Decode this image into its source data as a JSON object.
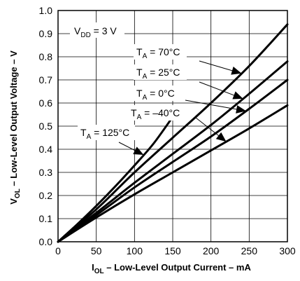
{
  "chart_data": {
    "type": "line",
    "xlabel": {
      "main": "I",
      "sub": "OL",
      "rest": " – Low-Level Output Current – mA"
    },
    "ylabel": {
      "main": "V",
      "sub": "OL",
      "rest": " – Low-Level Output Voltage – V"
    },
    "xlim": [
      0,
      300
    ],
    "ylim": [
      0,
      1.0
    ],
    "x_ticks": [
      0,
      50,
      100,
      150,
      200,
      250,
      300
    ],
    "x_tick_labels": [
      "0",
      "50",
      "100",
      "150",
      "200",
      "250",
      "300"
    ],
    "y_ticks": [
      0,
      0.1,
      0.2,
      0.3,
      0.4,
      0.5,
      0.6,
      0.7,
      0.8,
      0.9,
      1.0
    ],
    "y_tick_labels": [
      "0.0",
      "0.1",
      "0.2",
      "0.3",
      "0.4",
      "0.5",
      "0.6",
      "0.7",
      "0.8",
      "0.9",
      "1.0"
    ],
    "grid": true,
    "legend": "none",
    "condition": {
      "main": "V",
      "sub": "DD",
      "rest": " = 3 V"
    },
    "series": [
      {
        "label": {
          "main": "T",
          "sub": "A",
          "rest": " = 125°C"
        },
        "x": [
          0,
          25,
          50,
          75,
          100,
          125,
          150
        ],
        "y": [
          0,
          0.075,
          0.155,
          0.24,
          0.33,
          0.425,
          0.54
        ]
      },
      {
        "label": {
          "main": "T",
          "sub": "A",
          "rest": " = 70°C"
        },
        "x": [
          0,
          50,
          100,
          150,
          200,
          250,
          300
        ],
        "y": [
          0,
          0.14,
          0.3,
          0.45,
          0.6,
          0.76,
          0.94
        ]
      },
      {
        "label": {
          "main": "T",
          "sub": "A",
          "rest": " = 25°C"
        },
        "x": [
          0,
          50,
          100,
          150,
          200,
          250,
          300
        ],
        "y": [
          0,
          0.125,
          0.255,
          0.38,
          0.505,
          0.64,
          0.78
        ]
      },
      {
        "label": {
          "main": "T",
          "sub": "A",
          "rest": " = 0°C"
        },
        "x": [
          0,
          50,
          100,
          150,
          200,
          250,
          300
        ],
        "y": [
          0,
          0.115,
          0.235,
          0.345,
          0.455,
          0.575,
          0.7
        ]
      },
      {
        "label": {
          "main": "T",
          "sub": "A",
          "rest": " = –40°C"
        },
        "x": [
          0,
          50,
          100,
          150,
          200,
          250,
          300
        ],
        "y": [
          0,
          0.105,
          0.205,
          0.3,
          0.395,
          0.49,
          0.59
        ]
      }
    ],
    "colors": {
      "line": "#000000",
      "grid": "#000000",
      "background": "#ffffff"
    }
  }
}
